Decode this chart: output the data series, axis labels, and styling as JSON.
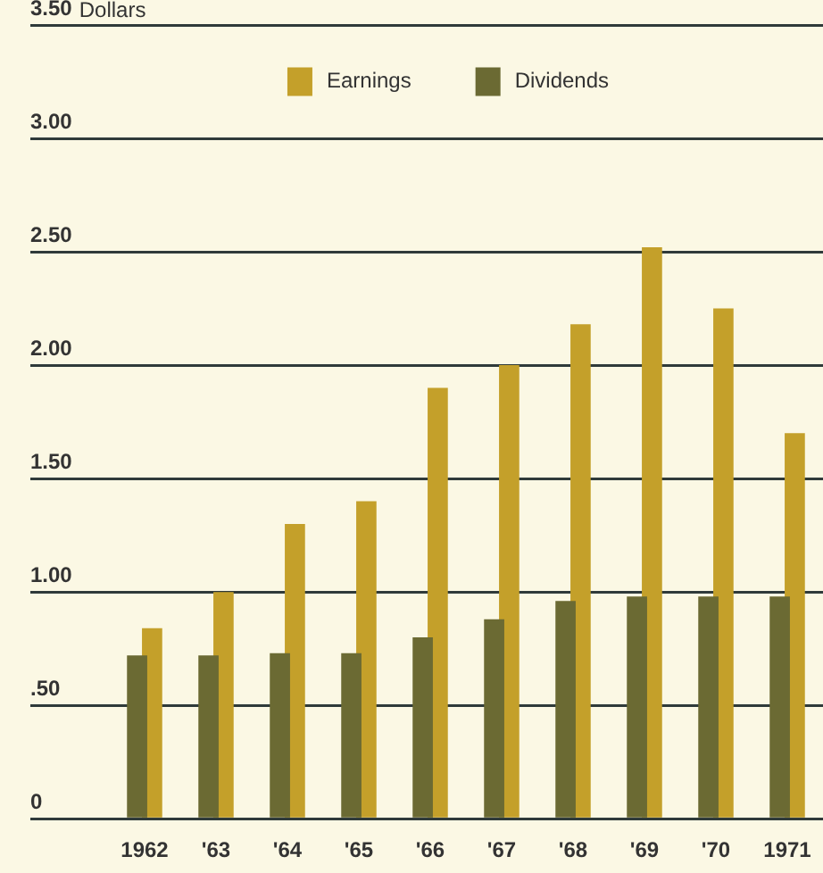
{
  "chart_data": {
    "type": "bar",
    "ylabel": "Dollars",
    "categories": [
      "1962",
      "'63",
      "'64",
      "'65",
      "'66",
      "'67",
      "'68",
      "'69",
      "'70",
      "1971"
    ],
    "series": [
      {
        "name": "Earnings",
        "color": "#c4a02a",
        "values": [
          0.84,
          1.0,
          1.3,
          1.4,
          1.9,
          2.0,
          2.18,
          2.52,
          2.25,
          1.7
        ]
      },
      {
        "name": "Dividends",
        "color": "#6b6a33",
        "values": [
          0.72,
          0.72,
          0.73,
          0.73,
          0.8,
          0.88,
          0.96,
          0.98,
          0.98,
          0.98
        ]
      }
    ],
    "ylim": [
      0,
      3.5
    ],
    "yticks": [
      0,
      {
        "value": 0.5,
        "label": ".50"
      },
      {
        "value": 1,
        "label": "1.00"
      },
      {
        "value": 1.5,
        "label": "1.50"
      },
      {
        "value": 2,
        "label": "2.00"
      },
      {
        "value": 2.5,
        "label": "2.50"
      },
      {
        "value": 3,
        "label": "3.00"
      },
      {
        "value": 3.5,
        "label": "3.50"
      }
    ],
    "grid": "y",
    "legend": "top"
  }
}
